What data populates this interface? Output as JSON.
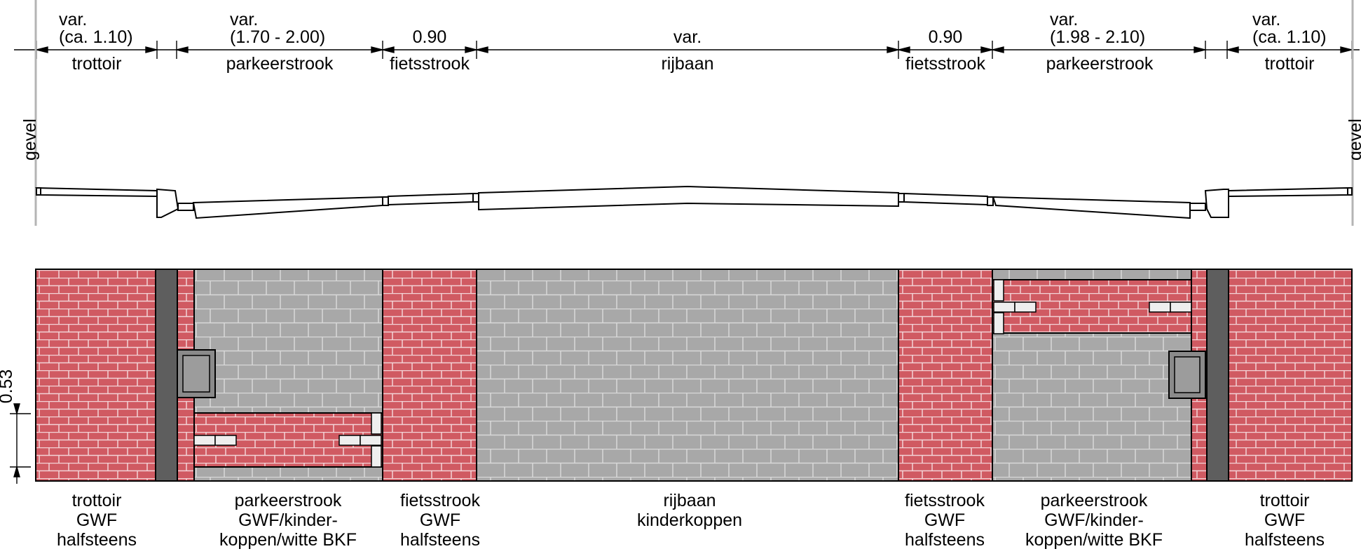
{
  "colors": {
    "brick": "#d05a62",
    "brick_joint": "#f3d3d6",
    "cobble": "#a8a8a8",
    "cobble_joint": "#d8d8d8",
    "kerb_dark": "#5e5e5e",
    "white_stone": "#eeeeee",
    "outline": "#000000"
  },
  "dimensions": [
    {
      "line1": "var.",
      "line2": "(ca. 1.10)",
      "zone": "trottoir"
    },
    {
      "line1": "var.",
      "line2": "(1.70 - 2.00)",
      "zone": "parkeerstrook"
    },
    {
      "line1": "",
      "line2": "0.90",
      "zone": "fietsstrook"
    },
    {
      "line1": "",
      "line2": "var.",
      "zone": "rijbaan"
    },
    {
      "line1": "",
      "line2": "0.90",
      "zone": "fietsstrook"
    },
    {
      "line1": "var.",
      "line2": "(1.98 - 2.10)",
      "zone": "parkeerstrook"
    },
    {
      "line1": "var.",
      "line2": "(ca. 1.10)",
      "zone": "trottoir"
    }
  ],
  "facade_label": "gevel",
  "scale_label": "0.53",
  "zone_labels": [
    {
      "l1": "trottoir",
      "l2": "GWF",
      "l3": "halfsteens"
    },
    {
      "l1": "parkeerstrook",
      "l2": "GWF/kinder-",
      "l3": "koppen/witte BKF"
    },
    {
      "l1": "fietsstrook",
      "l2": "GWF",
      "l3": "halfsteens"
    },
    {
      "l1": "rijbaan",
      "l2": "kinderkoppen",
      "l3": ""
    },
    {
      "l1": "fietsstrook",
      "l2": "GWF",
      "l3": "halfsteens"
    },
    {
      "l1": "parkeerstrook",
      "l2": "GWF/kinder-",
      "l3": "koppen/witte BKF"
    },
    {
      "l1": "trottoir",
      "l2": "GWF",
      "l3": "halfsteens"
    }
  ]
}
